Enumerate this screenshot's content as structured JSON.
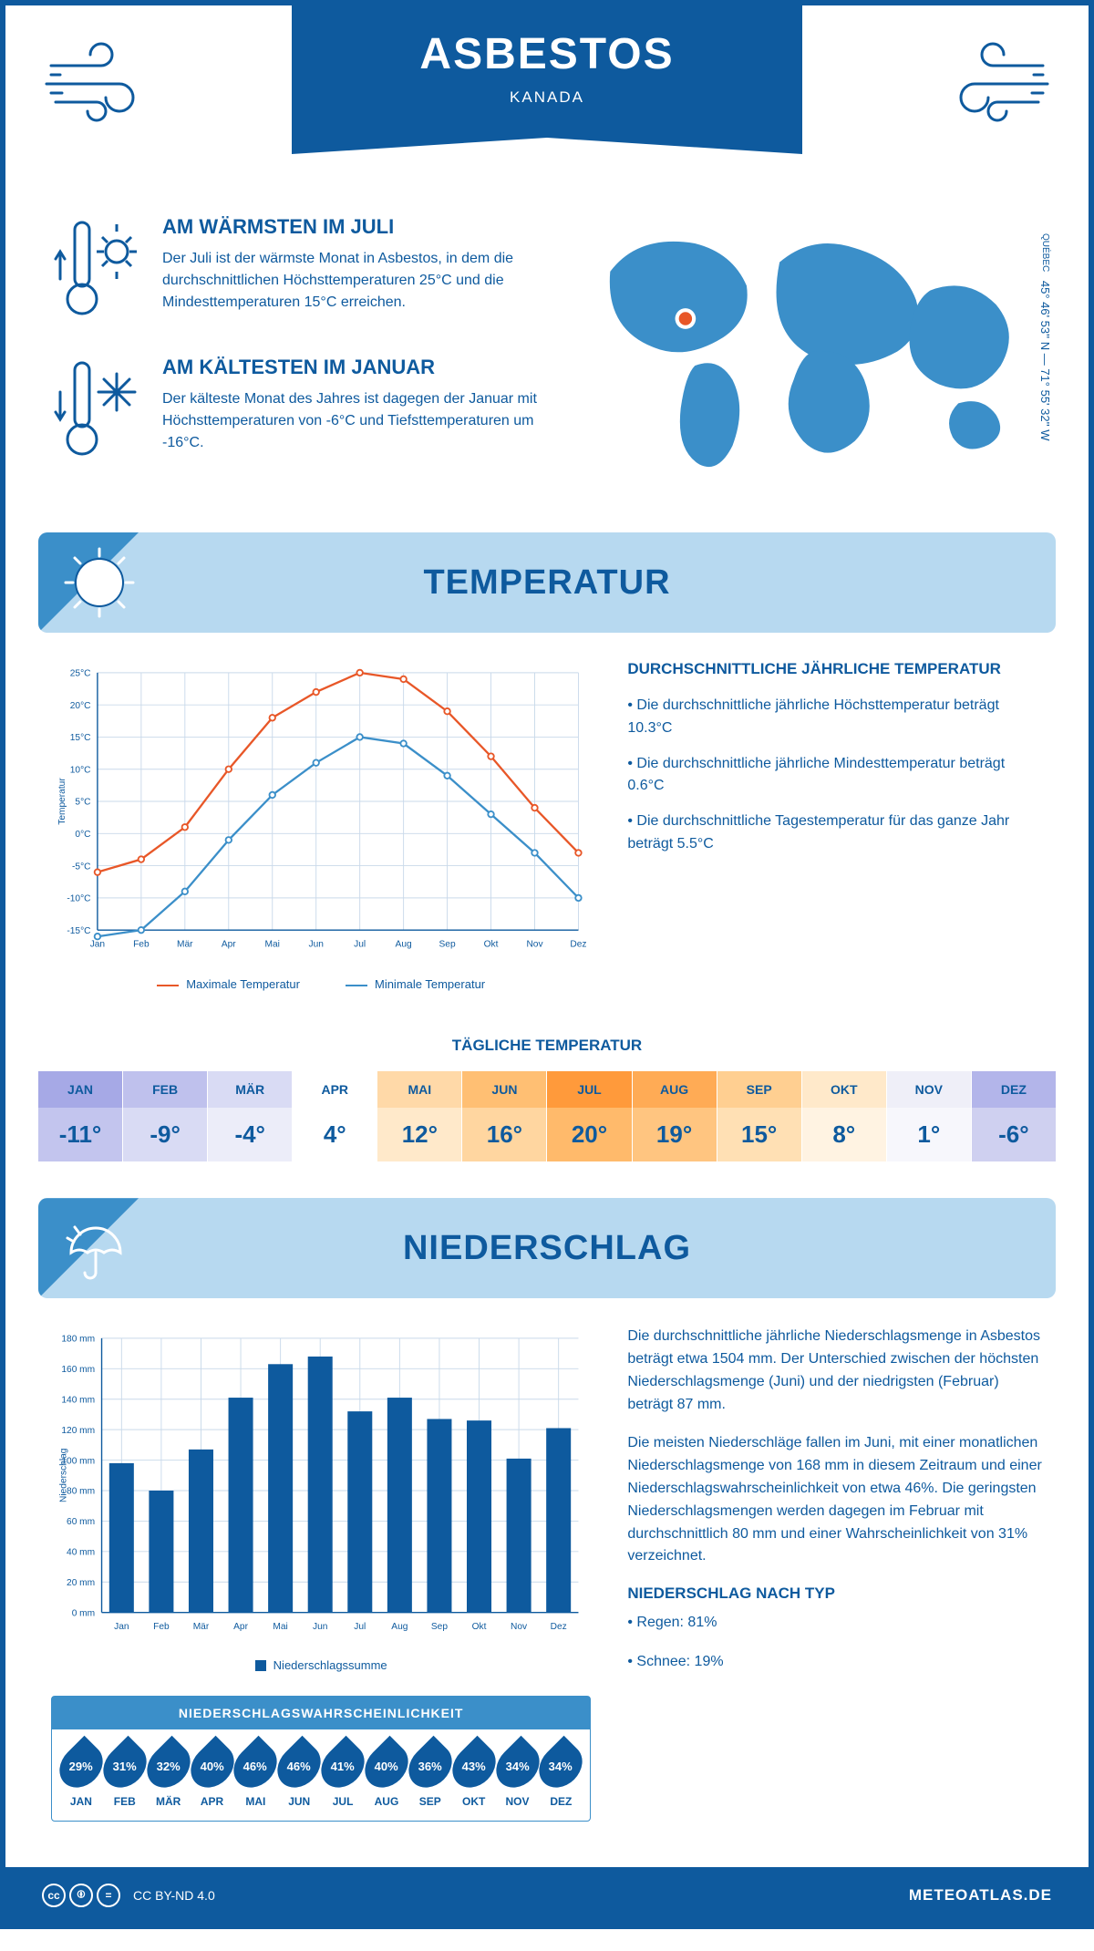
{
  "header": {
    "title": "ASBESTOS",
    "country": "KANADA"
  },
  "map": {
    "region": "QUÉBEC",
    "coords": "45° 46' 53'' N — 71° 55' 32'' W",
    "marker_color": "#e85728",
    "land_color": "#3b8fc9"
  },
  "warmest": {
    "title": "AM WÄRMSTEN IM JULI",
    "text": "Der Juli ist der wärmste Monat in Asbestos, in dem die durchschnittlichen Höchsttemperaturen 25°C und die Mindesttemperaturen 15°C erreichen."
  },
  "coldest": {
    "title": "AM KÄLTESTEN IM JANUAR",
    "text": "Der kälteste Monat des Jahres ist dagegen der Januar mit Höchsttemperaturen von -6°C und Tiefsttemperaturen um -16°C."
  },
  "temp_section": {
    "heading": "TEMPERATUR",
    "chart": {
      "months": [
        "Jan",
        "Feb",
        "Mär",
        "Apr",
        "Mai",
        "Jun",
        "Jul",
        "Aug",
        "Sep",
        "Okt",
        "Nov",
        "Dez"
      ],
      "max_series": {
        "label": "Maximale Temperatur",
        "color": "#e85728",
        "values": [
          -6,
          -4,
          1,
          10,
          18,
          22,
          25,
          24,
          19,
          12,
          4,
          -3
        ]
      },
      "min_series": {
        "label": "Minimale Temperatur",
        "color": "#3b8fc9",
        "values": [
          -16,
          -15,
          -9,
          -1,
          6,
          11,
          15,
          14,
          9,
          3,
          -3,
          -10
        ]
      },
      "ylabel": "Temperatur",
      "ylim": [
        -15,
        25
      ],
      "ytick_step": 5,
      "grid_color": "#c9d9ea",
      "axis_color": "#0e5a9e",
      "label_fontsize": 11
    },
    "summary_title": "DURCHSCHNITTLICHE JÄHRLICHE TEMPERATUR",
    "bullets": [
      "• Die durchschnittliche jährliche Höchsttemperatur beträgt 10.3°C",
      "• Die durchschnittliche jährliche Mindesttemperatur beträgt 0.6°C",
      "• Die durchschnittliche Tagestemperatur für das ganze Jahr beträgt 5.5°C"
    ]
  },
  "daily": {
    "title": "TÄGLICHE TEMPERATUR",
    "months": [
      "JAN",
      "FEB",
      "MÄR",
      "APR",
      "MAI",
      "JUN",
      "JUL",
      "AUG",
      "SEP",
      "OKT",
      "NOV",
      "DEZ"
    ],
    "values": [
      "-11°",
      "-9°",
      "-4°",
      "4°",
      "12°",
      "16°",
      "20°",
      "19°",
      "15°",
      "8°",
      "1°",
      "-6°"
    ],
    "head_colors": [
      "#a6a9e6",
      "#bfc1ed",
      "#d9dbf4",
      "#ffffff",
      "#ffd9a8",
      "#ffbf73",
      "#ff9a3b",
      "#ffab55",
      "#ffcf91",
      "#ffe9ca",
      "#efeff8",
      "#b3b5ea"
    ],
    "val_colors": [
      "#c3c5ee",
      "#d9dbf4",
      "#ecedf9",
      "#ffffff",
      "#ffe9ca",
      "#ffd6a0",
      "#ffba6b",
      "#ffc580",
      "#ffe0b4",
      "#fff3e2",
      "#f7f7fc",
      "#cfd0f0"
    ]
  },
  "precip_section": {
    "heading": "NIEDERSCHLAG",
    "chart": {
      "months": [
        "Jan",
        "Feb",
        "Mär",
        "Apr",
        "Mai",
        "Jun",
        "Jul",
        "Aug",
        "Sep",
        "Okt",
        "Nov",
        "Dez"
      ],
      "values": [
        98,
        80,
        107,
        141,
        163,
        168,
        132,
        141,
        127,
        126,
        101,
        121
      ],
      "bar_color": "#0e5a9e",
      "ylabel": "Niederschlag",
      "ylim": [
        0,
        180
      ],
      "ytick_step": 20,
      "grid_color": "#c9d9ea",
      "axis_color": "#0e5a9e",
      "legend": "Niederschlagssumme"
    },
    "para1": "Die durchschnittliche jährliche Niederschlagsmenge in Asbestos beträgt etwa 1504 mm. Der Unterschied zwischen der höchsten Niederschlagsmenge (Juni) und der niedrigsten (Februar) beträgt 87 mm.",
    "para2": "Die meisten Niederschläge fallen im Juni, mit einer monatlichen Niederschlagsmenge von 168 mm in diesem Zeitraum und einer Niederschlagswahrscheinlichkeit von etwa 46%. Die geringsten Niederschlagsmengen werden dagegen im Februar mit durchschnittlich 80 mm und einer Wahrscheinlichkeit von 31% verzeichnet.",
    "type_title": "NIEDERSCHLAG NACH TYP",
    "type_bullets": [
      "• Regen: 81%",
      "• Schnee: 19%"
    ],
    "prob": {
      "title": "NIEDERSCHLAGSWAHRSCHEINLICHKEIT",
      "months": [
        "JAN",
        "FEB",
        "MÄR",
        "APR",
        "MAI",
        "JUN",
        "JUL",
        "AUG",
        "SEP",
        "OKT",
        "NOV",
        "DEZ"
      ],
      "values": [
        "29%",
        "31%",
        "32%",
        "40%",
        "46%",
        "46%",
        "41%",
        "40%",
        "36%",
        "43%",
        "34%",
        "34%"
      ]
    }
  },
  "footer": {
    "license": "CC BY-ND 4.0",
    "site": "METEOATLAS.DE"
  },
  "colors": {
    "brand": "#0e5a9e",
    "light": "#b7d9f0",
    "mid": "#3b8fc9"
  }
}
